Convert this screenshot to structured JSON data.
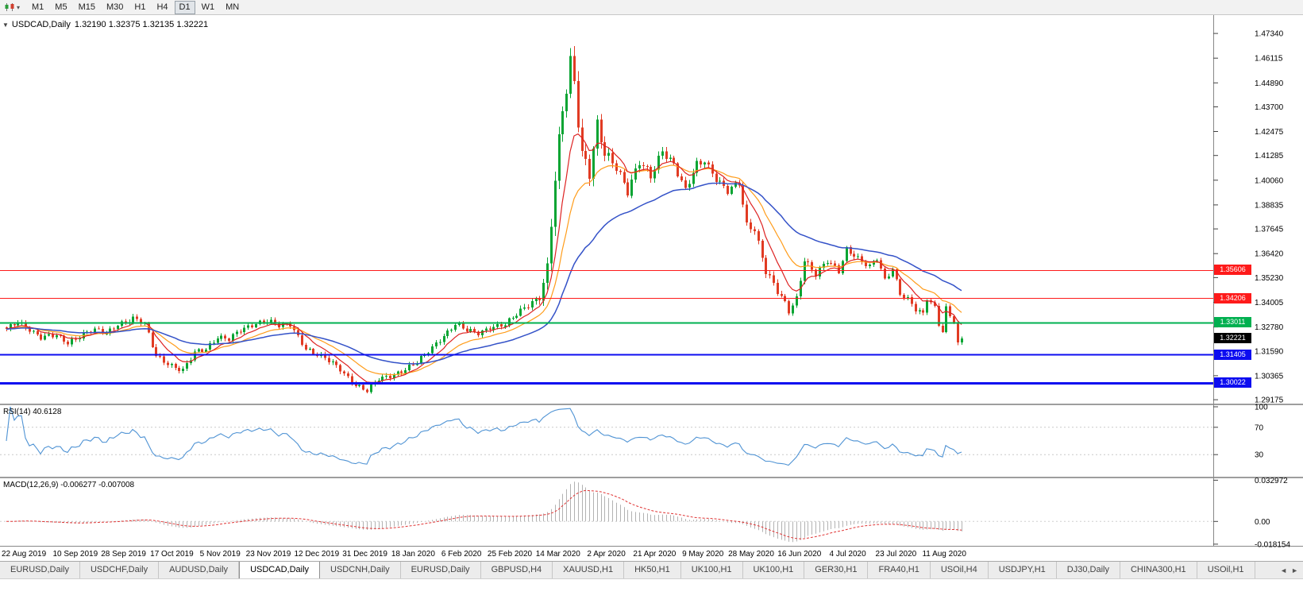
{
  "icons": {
    "caret": "▾",
    "expander": "▼"
  },
  "toolbar": {
    "timeframes": [
      {
        "label": "M1",
        "active": false
      },
      {
        "label": "M5",
        "active": false
      },
      {
        "label": "M15",
        "active": false
      },
      {
        "label": "M30",
        "active": false
      },
      {
        "label": "H1",
        "active": false
      },
      {
        "label": "H4",
        "active": false
      },
      {
        "label": "D1",
        "active": true
      },
      {
        "label": "W1",
        "active": false
      },
      {
        "label": "MN",
        "active": false
      }
    ]
  },
  "chart": {
    "symbol_title": "USDCAD,Daily",
    "ohlc_text": "1.32190 1.32375 1.32135 1.32221",
    "open": "1.32190",
    "high": "1.32375",
    "low": "1.32135",
    "close": "1.32221",
    "price_scale_ticks": [
      "1.47340",
      "1.46115",
      "1.44890",
      "1.43700",
      "1.42475",
      "1.41285",
      "1.40060",
      "1.38835",
      "1.37645",
      "1.36420",
      "1.35230",
      "1.34005",
      "1.32780",
      "1.31590",
      "1.30365",
      "1.29175"
    ],
    "hlines": [
      {
        "label": "1.35606",
        "price": 1.35606,
        "color": "#fe1a1a",
        "thickness": 1,
        "kind": "resistance"
      },
      {
        "label": "1.34206",
        "price": 1.34206,
        "color": "#fe1a1a",
        "thickness": 1,
        "kind": "resistance"
      },
      {
        "label": "1.33011",
        "price": 1.33011,
        "color": "#00b050",
        "thickness": 2,
        "kind": "pivot"
      },
      {
        "label": "1.31405",
        "price": 1.31405,
        "color": "#0d0df0",
        "thickness": 2,
        "kind": "support"
      },
      {
        "label": "1.30022",
        "price": 1.30022,
        "color": "#0d0df0",
        "thickness": 3,
        "kind": "support"
      }
    ],
    "current_price": {
      "label": "1.32221",
      "price": 1.32221,
      "color": "#000000"
    },
    "colors": {
      "up": "#07a432",
      "down": "#e13b23",
      "ma_fast": "#dd2222",
      "ma_mid": "#ff9c1a",
      "ma_slow": "#3452c8"
    }
  },
  "rsi": {
    "title": "RSI(14) 40.6128",
    "value": "40.6128",
    "line_color": "#4f93d4",
    "levels": [
      70,
      30
    ],
    "ticks": [
      {
        "label": "100",
        "value": 100
      },
      {
        "label": "70",
        "value": 70
      },
      {
        "label": "30",
        "value": 30
      }
    ]
  },
  "macd": {
    "title": "MACD(12,26,9) -0.006277 -0.007008",
    "main_value": "-0.006277",
    "signal_value": "-0.007008",
    "hist_color": "#b2b2b2",
    "signal_color": "#e03535",
    "render_range": [
      -0.0195,
      0.0345
    ],
    "ticks": [
      {
        "label": "0.032972",
        "value": 0.032972
      },
      {
        "label": "0.00",
        "value": 0
      },
      {
        "label": "-0.018154",
        "value": -0.018154
      }
    ]
  },
  "tabs": [
    {
      "label": "EURUSD,Daily",
      "active": false
    },
    {
      "label": "USDCHF,Daily",
      "active": false
    },
    {
      "label": "AUDUSD,Daily",
      "active": false
    },
    {
      "label": "USDCAD,Daily",
      "active": true
    },
    {
      "label": "USDCNH,Daily",
      "active": false
    },
    {
      "label": "EURUSD,Daily",
      "active": false
    },
    {
      "label": "GBPUSD,H4",
      "active": false
    },
    {
      "label": "XAUUSD,H1",
      "active": false
    },
    {
      "label": "HK50,H1",
      "active": false
    },
    {
      "label": "UK100,H1",
      "active": false
    },
    {
      "label": "UK100,H1",
      "active": false
    },
    {
      "label": "GER30,H1",
      "active": false
    },
    {
      "label": "FRA40,H1",
      "active": false
    },
    {
      "label": "USOil,H4",
      "active": false
    },
    {
      "label": "USDJPY,H1",
      "active": false
    },
    {
      "label": "DJ30,Daily",
      "active": false
    },
    {
      "label": "CHINA300,H1",
      "active": false
    },
    {
      "label": "USOil,H1",
      "active": false
    }
  ],
  "tabs_nav": {
    "left": "◄",
    "right": "►"
  },
  "chart_data": {
    "type": "candlestick",
    "symbol": "USDCAD",
    "timeframe": "Daily",
    "current_bar": {
      "open": 1.3219,
      "high": 1.32375,
      "low": 1.32135,
      "close": 1.32221
    },
    "x_labels": [
      "22 Aug 2019",
      "10 Sep 2019",
      "28 Sep 2019",
      "17 Oct 2019",
      "5 Nov 2019",
      "23 Nov 2019",
      "12 Dec 2019",
      "31 Dec 2019",
      "18 Jan 2020",
      "6 Feb 2020",
      "25 Feb 2020",
      "14 Mar 2020",
      "2 Apr 2020",
      "21 Apr 2020",
      "9 May 2020",
      "28 May 2020",
      "16 Jun 2020",
      "4 Jul 2020",
      "23 Jul 2020",
      "11 Aug 2020"
    ],
    "price_axis_ticks": [
      1.4734,
      1.46115,
      1.4489,
      1.437,
      1.42475,
      1.41285,
      1.4006,
      1.38835,
      1.37645,
      1.3642,
      1.3523,
      1.34005,
      1.3278,
      1.3159,
      1.30365,
      1.29175
    ],
    "ylim": [
      1.2898,
      1.4825
    ],
    "candle_count": 250,
    "final_close": 1.32221,
    "horizontal_levels": [
      1.35606,
      1.34206,
      1.33011,
      1.31405,
      1.30022
    ],
    "waypoints": [
      [
        0,
        1.3262,
        1
      ],
      [
        3,
        1.3302,
        1
      ],
      [
        6,
        1.327,
        1
      ],
      [
        9,
        1.3228,
        1
      ],
      [
        13,
        1.3232,
        1
      ],
      [
        16,
        1.32,
        1
      ],
      [
        20,
        1.3248,
        1
      ],
      [
        23,
        1.3262,
        1
      ],
      [
        26,
        1.3242,
        1
      ],
      [
        29,
        1.3295,
        1
      ],
      [
        33,
        1.3322,
        1
      ],
      [
        36,
        1.3288,
        1
      ],
      [
        39,
        1.3135,
        1.2
      ],
      [
        43,
        1.309,
        1
      ],
      [
        46,
        1.306,
        1
      ],
      [
        49,
        1.3148,
        1
      ],
      [
        52,
        1.3172,
        1
      ],
      [
        55,
        1.3232,
        1
      ],
      [
        58,
        1.3215,
        1
      ],
      [
        61,
        1.3258,
        1
      ],
      [
        65,
        1.33,
        1
      ],
      [
        68,
        1.3312,
        1
      ],
      [
        71,
        1.3282,
        1
      ],
      [
        74,
        1.329,
        1
      ],
      [
        78,
        1.3175,
        1
      ],
      [
        81,
        1.314,
        1
      ],
      [
        84,
        1.3108,
        1
      ],
      [
        87,
        1.307,
        1
      ],
      [
        91,
        1.2992,
        1
      ],
      [
        94,
        1.2958,
        1
      ],
      [
        97,
        1.3018,
        1
      ],
      [
        100,
        1.304,
        1
      ],
      [
        104,
        1.3068,
        1
      ],
      [
        107,
        1.31,
        1
      ],
      [
        110,
        1.3158,
        1
      ],
      [
        113,
        1.322,
        1
      ],
      [
        117,
        1.329,
        1
      ],
      [
        120,
        1.3258,
        1
      ],
      [
        123,
        1.325,
        1
      ],
      [
        126,
        1.328,
        1
      ],
      [
        130,
        1.3285,
        1
      ],
      [
        133,
        1.334,
        1.1
      ],
      [
        136,
        1.3395,
        1.3
      ],
      [
        139,
        1.343,
        1.6
      ],
      [
        141,
        1.356,
        2.4
      ],
      [
        143,
        1.4,
        3.6
      ],
      [
        145,
        1.435,
        4
      ],
      [
        147,
        1.46,
        4.2
      ],
      [
        148,
        1.451,
        4
      ],
      [
        150,
        1.415,
        3.4
      ],
      [
        152,
        1.404,
        3
      ],
      [
        154,
        1.4265,
        2.6
      ],
      [
        156,
        1.413,
        2.2
      ],
      [
        159,
        1.408,
        2
      ],
      [
        162,
        1.396,
        2
      ],
      [
        165,
        1.409,
        1.8
      ],
      [
        168,
        1.402,
        1.7
      ],
      [
        171,
        1.416,
        1.6
      ],
      [
        174,
        1.409,
        1.5
      ],
      [
        177,
        1.395,
        1.5
      ],
      [
        180,
        1.408,
        1.5
      ],
      [
        182,
        1.4105,
        1.4
      ],
      [
        185,
        1.402,
        1.4
      ],
      [
        188,
        1.395,
        1.4
      ],
      [
        191,
        1.3985,
        1.4
      ],
      [
        193,
        1.378,
        1.5
      ],
      [
        195,
        1.377,
        1.4
      ],
      [
        198,
        1.356,
        1.5
      ],
      [
        201,
        1.345,
        1.4
      ],
      [
        204,
        1.3355,
        1.5
      ],
      [
        206,
        1.342,
        1.2
      ],
      [
        208,
        1.362,
        1.3
      ],
      [
        211,
        1.354,
        1.2
      ],
      [
        214,
        1.36,
        1.1
      ],
      [
        217,
        1.3555,
        1.1
      ],
      [
        219,
        1.3668,
        1.1
      ],
      [
        221,
        1.364,
        1.1
      ],
      [
        223,
        1.36,
        1
      ],
      [
        225,
        1.3575,
        1
      ],
      [
        227,
        1.3615,
        1
      ],
      [
        229,
        1.351,
        1
      ],
      [
        231,
        1.3572,
        1
      ],
      [
        233,
        1.3448,
        1
      ],
      [
        235,
        1.3415,
        1
      ],
      [
        237,
        1.336,
        1
      ],
      [
        239,
        1.3338,
        1
      ],
      [
        240,
        1.342,
        1
      ],
      [
        242,
        1.3378,
        1
      ],
      [
        243,
        1.3298,
        1
      ],
      [
        244,
        1.3262,
        1
      ],
      [
        245,
        1.3375,
        1
      ],
      [
        246,
        1.3338,
        1
      ],
      [
        247,
        1.3308,
        1
      ],
      [
        248,
        1.3185,
        1.2
      ],
      [
        249,
        1.32221,
        1
      ]
    ],
    "indicators": {
      "rsi": {
        "period": 14,
        "current": 40.6128,
        "levels": [
          30,
          70
        ],
        "range": [
          0,
          100
        ]
      },
      "macd": {
        "fast": 12,
        "slow": 26,
        "signal": 9,
        "current_main": -0.006277,
        "current_signal": -0.007008,
        "axis_ticks": [
          0.032972,
          0,
          -0.018154
        ]
      }
    }
  }
}
